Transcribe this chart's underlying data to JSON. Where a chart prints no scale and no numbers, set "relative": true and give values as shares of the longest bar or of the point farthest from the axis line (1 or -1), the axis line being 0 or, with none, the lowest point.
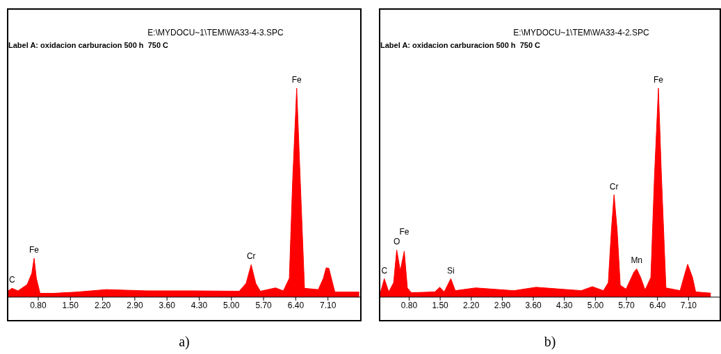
{
  "chart_data": [
    {
      "type": "area",
      "title": "E:\\MYDOCU~1\\TEM\\WA33-4-3.SPC",
      "subtitle": "Label A: oxidacion carburacion 500 h  750 C",
      "relative": true,
      "x": [
        0.15,
        0.23,
        0.36,
        0.56,
        0.66,
        0.71,
        0.76,
        0.84,
        1.12,
        1.63,
        2.28,
        3.15,
        4.16,
        5.17,
        5.32,
        5.43,
        5.53,
        5.63,
        5.96,
        6.13,
        6.26,
        6.33,
        6.42,
        6.5,
        6.59,
        6.89,
        7.0,
        7.06,
        7.12,
        7.25,
        7.78
      ],
      "series": [
        {
          "color": "#ff0000",
          "values": [
            0.03,
            0.042,
            0.03,
            0.06,
            0.114,
            0.186,
            0.09,
            0.018,
            0.018,
            0.024,
            0.036,
            0.03,
            0.03,
            0.028,
            0.066,
            0.155,
            0.066,
            0.028,
            0.044,
            0.03,
            0.09,
            0.546,
            1.0,
            0.546,
            0.042,
            0.036,
            0.09,
            0.14,
            0.138,
            0.024,
            0.024
          ]
        }
      ],
      "xlim": [
        0.15,
        7.8
      ],
      "xticks": [
        {
          "value": 0.8,
          "label": "0.80"
        },
        {
          "value": 1.5,
          "label": "1.50"
        },
        {
          "value": 2.2,
          "label": "2.20"
        },
        {
          "value": 2.9,
          "label": "2.90"
        },
        {
          "value": 3.6,
          "label": "3.60"
        },
        {
          "value": 4.3,
          "label": "4.30"
        },
        {
          "value": 5.0,
          "label": "5.00"
        },
        {
          "value": 5.7,
          "label": "5.70"
        },
        {
          "value": 6.4,
          "label": "6.40"
        },
        {
          "value": 7.1,
          "label": "7.10"
        }
      ],
      "grid": false,
      "legend": false,
      "annotations": [
        {
          "text": "C",
          "x": 0.23,
          "y": 0.042
        },
        {
          "text": "Fe",
          "x": 0.71,
          "y": 0.186
        },
        {
          "text": "Cr",
          "x": 5.43,
          "y": 0.155
        },
        {
          "text": "Fe",
          "x": 6.42,
          "y": 1.0
        },
        "a)"
      ]
    },
    {
      "type": "area",
      "title": "E:\\MYDOCU~1\\TEM\\WA33-4-2.SPC",
      "subtitle": "Label A: oxidacion carburacion 500 h  750 C",
      "relative": true,
      "x": [
        0.15,
        0.24,
        0.34,
        0.45,
        0.52,
        0.6,
        0.69,
        0.76,
        0.85,
        1.38,
        1.49,
        1.59,
        1.74,
        1.84,
        2.3,
        3.16,
        3.66,
        4.68,
        4.93,
        5.18,
        5.29,
        5.36,
        5.42,
        5.49,
        5.56,
        5.69,
        5.87,
        5.93,
        6.02,
        6.12,
        6.25,
        6.33,
        6.42,
        6.49,
        6.59,
        6.91,
        7.01,
        7.08,
        7.19,
        7.26,
        7.6
      ],
      "series": [
        {
          "color": "#ff0000",
          "values": [
            0.019,
            0.088,
            0.025,
            0.069,
            0.226,
            0.126,
            0.22,
            0.044,
            0.021,
            0.025,
            0.047,
            0.025,
            0.088,
            0.031,
            0.044,
            0.031,
            0.047,
            0.031,
            0.05,
            0.031,
            0.069,
            0.321,
            0.49,
            0.321,
            0.057,
            0.038,
            0.12,
            0.135,
            0.094,
            0.034,
            0.094,
            0.572,
            1.0,
            0.572,
            0.044,
            0.031,
            0.107,
            0.157,
            0.094,
            0.025,
            0.019
          ]
        }
      ],
      "xlim": [
        0.15,
        7.8
      ],
      "xticks": [
        {
          "value": 0.8,
          "label": "0.80"
        },
        {
          "value": 1.5,
          "label": "1.50"
        },
        {
          "value": 2.2,
          "label": "2.20"
        },
        {
          "value": 2.9,
          "label": "2.90"
        },
        {
          "value": 3.6,
          "label": "3.60"
        },
        {
          "value": 4.3,
          "label": "4.30"
        },
        {
          "value": 5.0,
          "label": "5.00"
        },
        {
          "value": 5.7,
          "label": "5.70"
        },
        {
          "value": 6.4,
          "label": "6.40"
        },
        {
          "value": 7.1,
          "label": "7.10"
        }
      ],
      "grid": false,
      "legend": false,
      "annotations": [
        {
          "text": "C",
          "x": 0.24,
          "y": 0.088
        },
        {
          "text": "O",
          "x": 0.52,
          "y": 0.226
        },
        {
          "text": "Fe",
          "x": 0.69,
          "y": 0.22
        },
        {
          "text": "Si",
          "x": 1.74,
          "y": 0.088
        },
        {
          "text": "Cr",
          "x": 5.42,
          "y": 0.49
        },
        {
          "text": "Mn",
          "x": 5.93,
          "y": 0.135
        },
        {
          "text": "Fe",
          "x": 6.42,
          "y": 1.0
        },
        "b)"
      ]
    }
  ]
}
